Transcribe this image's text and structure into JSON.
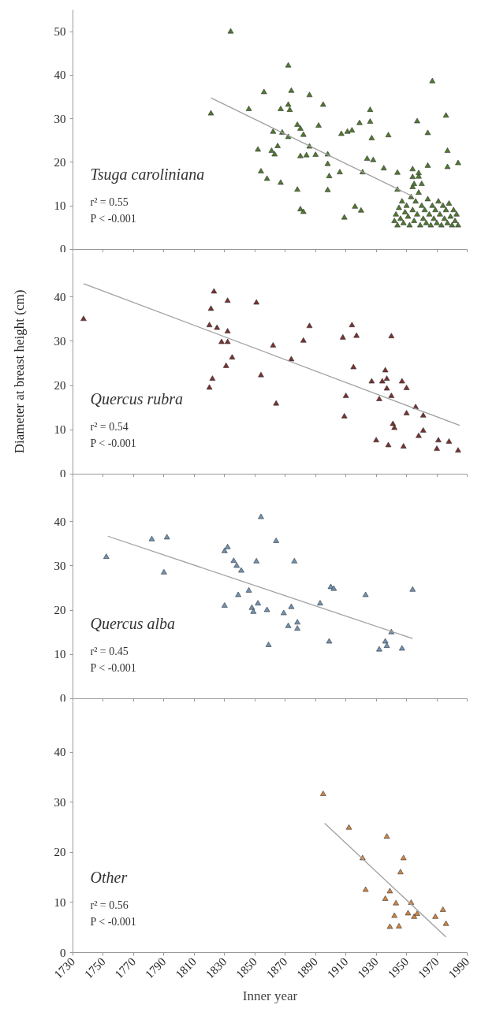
{
  "chart_data": [
    {
      "type": "scatter",
      "ylabel": "Diameter at breast height (cm)",
      "xlim": [
        1730,
        1990
      ],
      "xticks": [
        1730,
        1750,
        1770,
        1790,
        1810,
        1830,
        1850,
        1870,
        1890,
        1910,
        1930,
        1950,
        1970,
        1990
      ],
      "ylim": [
        0,
        55
      ],
      "yticks": [
        0,
        10,
        20,
        30,
        40,
        50
      ],
      "tick_labels": "y",
      "annotations": [
        "r² = 0.55",
        "P < -0.001"
      ],
      "series": [
        {
          "name": "Tsuga caroliniana",
          "marker": "triangle",
          "color": "#4f7a2e",
          "x": [
            1834,
            1821,
            1872,
            1856,
            1874,
            1886,
            1846,
            1867,
            1872,
            1873,
            1895,
            1926,
            1926,
            1919,
            1957,
            1976,
            1967,
            1964,
            1892,
            1878,
            1880,
            1882,
            1862,
            1868,
            1872,
            1907,
            1911,
            1914,
            1927,
            1938,
            1886,
            1890,
            1884,
            1880,
            1898,
            1865,
            1861,
            1863,
            1852,
            1898,
            1924,
            1928,
            1977,
            1977,
            1984,
            1964,
            1935,
            1944,
            1906,
            1921,
            1954,
            1954,
            1958,
            1854,
            1858,
            1867,
            1899,
            1878,
            1898,
            1944,
            1954,
            1960,
            1880,
            1882,
            1909,
            1916,
            1920,
            1942,
            1943,
            1944,
            1945,
            1946,
            1947,
            1948,
            1949,
            1950,
            1951,
            1952,
            1953,
            1954,
            1955,
            1956,
            1957,
            1958,
            1959,
            1960,
            1961,
            1962,
            1963,
            1964,
            1965,
            1966,
            1967,
            1968,
            1969,
            1970,
            1971,
            1972,
            1973,
            1974,
            1975,
            1976,
            1977,
            1978,
            1979,
            1980,
            1981,
            1982,
            1983,
            1984,
            1955,
            1958
          ],
          "values": [
            50,
            31.2,
            42.2,
            36.1,
            36.4,
            35.4,
            32.2,
            32.2,
            33.2,
            32,
            33.2,
            32,
            29.3,
            29,
            29.4,
            30.7,
            38.6,
            26.7,
            28.4,
            28.6,
            27.7,
            26.3,
            27,
            26.8,
            25.8,
            26.5,
            27,
            27.3,
            25.5,
            26.2,
            23.6,
            21.7,
            21.6,
            21.4,
            21.8,
            23.7,
            22.6,
            21.8,
            22.9,
            19.6,
            20.8,
            20.5,
            22.6,
            18.9,
            19.8,
            19.2,
            18.6,
            17.6,
            17.7,
            17.7,
            18.4,
            16.6,
            16.7,
            17.9,
            16.2,
            15.3,
            16.8,
            13.7,
            13.6,
            13.7,
            14.3,
            15,
            9.2,
            8.6,
            7.3,
            9.8,
            8.9,
            6.5,
            8,
            5.5,
            9.5,
            7,
            11,
            6,
            8.5,
            10,
            7.5,
            5.5,
            12,
            9,
            6.5,
            11,
            8,
            13,
            5.5,
            10,
            7,
            9,
            6,
            11.5,
            8,
            5.5,
            10,
            7,
            9,
            6,
            11,
            8,
            5.5,
            10,
            7,
            9,
            6,
            10.5,
            7.5,
            5.5,
            9,
            6.5,
            8,
            5.5,
            15,
            17.5
          ]
        },
        {
          "type": "line",
          "color": "#a0a0a0",
          "x": [
            1821,
            1954
          ],
          "values": [
            34.8,
            12.2
          ]
        }
      ]
    },
    {
      "type": "scatter",
      "xlim": [
        1730,
        1990
      ],
      "xticks": [
        1730,
        1750,
        1770,
        1790,
        1810,
        1830,
        1850,
        1870,
        1890,
        1910,
        1930,
        1950,
        1970,
        1990
      ],
      "ylim": [
        0,
        50
      ],
      "yticks": [
        0,
        10,
        20,
        30,
        40
      ],
      "tick_labels": "y",
      "annotations": [
        "r² = 0.54",
        "P < -0.001"
      ],
      "series": [
        {
          "name": "Quercus rubra",
          "marker": "triangle",
          "color": "#7a3030",
          "x": [
            1737,
            1823,
            1832,
            1851,
            1821,
            1820,
            1825,
            1832,
            1828,
            1832,
            1835,
            1831,
            1822,
            1820,
            1862,
            1854,
            1864,
            1874,
            1882,
            1886,
            1908,
            1914,
            1917,
            1940,
            1915,
            1910,
            1909,
            1927,
            1934,
            1937,
            1936,
            1937,
            1940,
            1932,
            1947,
            1950,
            1956,
            1950,
            1961,
            1941,
            1942,
            1961,
            1958,
            1930,
            1938,
            1948,
            1971,
            1978,
            1970,
            1984
          ],
          "values": [
            35,
            41.2,
            39.1,
            38.7,
            37.3,
            33.6,
            33,
            32.2,
            29.8,
            29.8,
            26.3,
            24.4,
            21.5,
            19.5,
            29,
            22.3,
            15.9,
            25.9,
            30.1,
            33.4,
            30.8,
            33.6,
            31.2,
            31.1,
            24.1,
            17.6,
            13,
            20.9,
            20.9,
            21.5,
            23.4,
            19.3,
            17.6,
            16.9,
            20.9,
            19.4,
            15.1,
            13.7,
            13.2,
            11.3,
            10.4,
            9.8,
            8.6,
            7.6,
            6.5,
            6.2,
            7.6,
            7.3,
            5.7,
            5.3
          ]
        },
        {
          "type": "line",
          "color": "#a0a0a0",
          "x": [
            1737,
            1985
          ],
          "values": [
            43,
            11
          ]
        }
      ]
    },
    {
      "type": "scatter",
      "xlim": [
        1730,
        1990
      ],
      "xticks": [
        1730,
        1750,
        1770,
        1790,
        1810,
        1830,
        1850,
        1870,
        1890,
        1910,
        1930,
        1950,
        1970,
        1990
      ],
      "ylim": [
        0,
        50
      ],
      "yticks": [
        0,
        10,
        20,
        30,
        40
      ],
      "tick_labels": "y",
      "annotations": [
        "r² = 0.45",
        "P < -0.001"
      ],
      "series": [
        {
          "name": "Quercus alba",
          "marker": "triangle",
          "color": "#6f92b5",
          "x": [
            1752,
            1782,
            1792,
            1790,
            1830,
            1832,
            1836,
            1838,
            1841,
            1851,
            1854,
            1864,
            1876,
            1846,
            1839,
            1830,
            1848,
            1849,
            1852,
            1858,
            1869,
            1874,
            1872,
            1878,
            1878,
            1859,
            1893,
            1900,
            1902,
            1899,
            1923,
            1940,
            1936,
            1937,
            1932,
            1947,
            1954
          ],
          "values": [
            32,
            36,
            36.4,
            28.5,
            33.3,
            34.2,
            31.1,
            30,
            28.9,
            31,
            41,
            35.6,
            31,
            24.4,
            23.4,
            21,
            20.5,
            19.6,
            21.5,
            20,
            19.3,
            20.7,
            16.4,
            17.2,
            15.8,
            12.1,
            21.5,
            25.2,
            24.8,
            12.9,
            23.4,
            15,
            12.9,
            11.9,
            11.1,
            11.3,
            24.6
          ]
        },
        {
          "type": "line",
          "color": "#a0a0a0",
          "x": [
            1753,
            1954
          ],
          "values": [
            36.7,
            13.6
          ]
        }
      ]
    },
    {
      "type": "scatter",
      "xlabel": "Inner year",
      "xlim": [
        1730,
        1990
      ],
      "xticks": [
        1730,
        1750,
        1770,
        1790,
        1810,
        1830,
        1850,
        1870,
        1890,
        1910,
        1930,
        1950,
        1970,
        1990
      ],
      "ylim": [
        0,
        50
      ],
      "yticks": [
        0,
        10,
        20,
        30,
        40
      ],
      "annotations": [
        "r² = 0.56",
        "P < -0.001"
      ],
      "series": [
        {
          "name": "Other",
          "marker": "triangle",
          "color": "#d08440",
          "x": [
            1895,
            1912,
            1937,
            1921,
            1948,
            1946,
            1923,
            1939,
            1936,
            1943,
            1953,
            1951,
            1942,
            1955,
            1957,
            1969,
            1974,
            1976,
            1939,
            1945
          ],
          "values": [
            31.6,
            24.9,
            23.1,
            18.8,
            18.8,
            16,
            12.5,
            12.2,
            10.7,
            9.8,
            9.9,
            7.8,
            7.3,
            7.1,
            7.7,
            7.1,
            8.5,
            5.7,
            5.1,
            5.2
          ]
        },
        {
          "type": "line",
          "color": "#a0a0a0",
          "x": [
            1896,
            1976
          ],
          "values": [
            25.8,
            3.1
          ]
        }
      ]
    }
  ]
}
